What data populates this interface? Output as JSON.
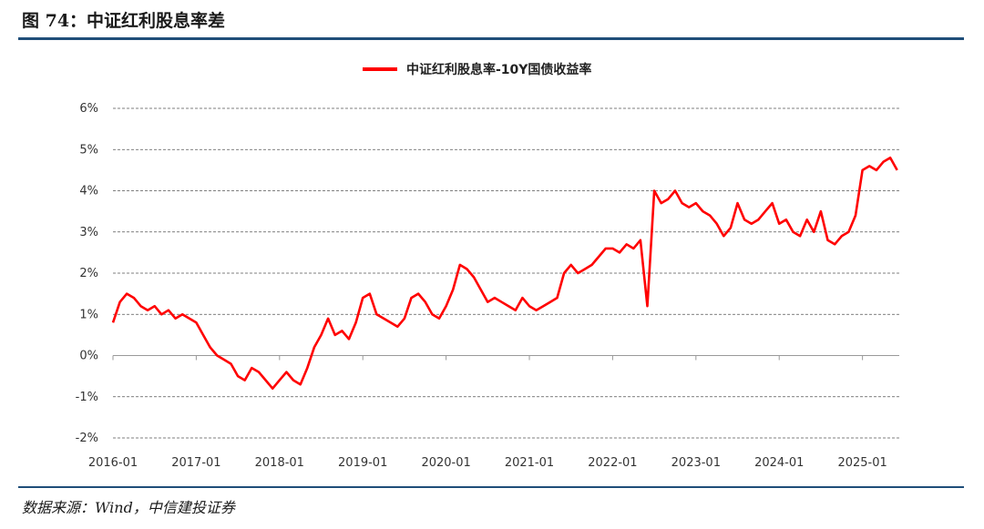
{
  "figure": {
    "title": "图 74：中证红利股息率差",
    "source": "数据来源：Wind，中信建投证券"
  },
  "chart_data": {
    "type": "line",
    "title": "",
    "xlabel": "",
    "ylabel": "",
    "ylim": [
      -2,
      6
    ],
    "y_ticks": [
      "-2%",
      "-1%",
      "0%",
      "1%",
      "2%",
      "3%",
      "4%",
      "5%",
      "6%"
    ],
    "x_ticks": [
      "2016-01",
      "2017-01",
      "2018-01",
      "2019-01",
      "2020-01",
      "2021-01",
      "2022-01",
      "2023-01",
      "2024-01",
      "2025-01"
    ],
    "grid": true,
    "legend_position": "top-center",
    "series": [
      {
        "name": "中证红利股息率-10Y国债收益率",
        "color": "#ff0000",
        "points": [
          [
            "2016-01",
            0.8
          ],
          [
            "2016-02",
            1.3
          ],
          [
            "2016-03",
            1.5
          ],
          [
            "2016-04",
            1.4
          ],
          [
            "2016-05",
            1.2
          ],
          [
            "2016-06",
            1.1
          ],
          [
            "2016-07",
            1.2
          ],
          [
            "2016-08",
            1.0
          ],
          [
            "2016-09",
            1.1
          ],
          [
            "2016-10",
            0.9
          ],
          [
            "2016-11",
            1.0
          ],
          [
            "2016-12",
            0.9
          ],
          [
            "2017-01",
            0.8
          ],
          [
            "2017-02",
            0.5
          ],
          [
            "2017-03",
            0.2
          ],
          [
            "2017-04",
            0.0
          ],
          [
            "2017-05",
            -0.1
          ],
          [
            "2017-06",
            -0.2
          ],
          [
            "2017-07",
            -0.5
          ],
          [
            "2017-08",
            -0.6
          ],
          [
            "2017-09",
            -0.3
          ],
          [
            "2017-10",
            -0.4
          ],
          [
            "2017-11",
            -0.6
          ],
          [
            "2017-12",
            -0.8
          ],
          [
            "2018-01",
            -0.6
          ],
          [
            "2018-02",
            -0.4
          ],
          [
            "2018-03",
            -0.6
          ],
          [
            "2018-04",
            -0.7
          ],
          [
            "2018-05",
            -0.3
          ],
          [
            "2018-06",
            0.2
          ],
          [
            "2018-07",
            0.5
          ],
          [
            "2018-08",
            0.9
          ],
          [
            "2018-09",
            0.5
          ],
          [
            "2018-10",
            0.6
          ],
          [
            "2018-11",
            0.4
          ],
          [
            "2018-12",
            0.8
          ],
          [
            "2019-01",
            1.4
          ],
          [
            "2019-02",
            1.5
          ],
          [
            "2019-03",
            1.0
          ],
          [
            "2019-04",
            0.9
          ],
          [
            "2019-05",
            0.8
          ],
          [
            "2019-06",
            0.7
          ],
          [
            "2019-07",
            0.9
          ],
          [
            "2019-08",
            1.4
          ],
          [
            "2019-09",
            1.5
          ],
          [
            "2019-10",
            1.3
          ],
          [
            "2019-11",
            1.0
          ],
          [
            "2019-12",
            0.9
          ],
          [
            "2020-01",
            1.2
          ],
          [
            "2020-02",
            1.6
          ],
          [
            "2020-03",
            2.2
          ],
          [
            "2020-04",
            2.1
          ],
          [
            "2020-05",
            1.9
          ],
          [
            "2020-06",
            1.6
          ],
          [
            "2020-07",
            1.3
          ],
          [
            "2020-08",
            1.4
          ],
          [
            "2020-09",
            1.3
          ],
          [
            "2020-10",
            1.2
          ],
          [
            "2020-11",
            1.1
          ],
          [
            "2020-12",
            1.4
          ],
          [
            "2021-01",
            1.2
          ],
          [
            "2021-02",
            1.1
          ],
          [
            "2021-03",
            1.2
          ],
          [
            "2021-04",
            1.3
          ],
          [
            "2021-05",
            1.4
          ],
          [
            "2021-06",
            2.0
          ],
          [
            "2021-07",
            2.2
          ],
          [
            "2021-08",
            2.0
          ],
          [
            "2021-09",
            2.1
          ],
          [
            "2021-10",
            2.2
          ],
          [
            "2021-11",
            2.4
          ],
          [
            "2021-12",
            2.6
          ],
          [
            "2022-01",
            2.6
          ],
          [
            "2022-02",
            2.5
          ],
          [
            "2022-03",
            2.7
          ],
          [
            "2022-04",
            2.6
          ],
          [
            "2022-05",
            2.8
          ],
          [
            "2022-06",
            1.2
          ],
          [
            "2022-07",
            4.0
          ],
          [
            "2022-08",
            3.7
          ],
          [
            "2022-09",
            3.8
          ],
          [
            "2022-10",
            4.0
          ],
          [
            "2022-11",
            3.7
          ],
          [
            "2022-12",
            3.6
          ],
          [
            "2023-01",
            3.7
          ],
          [
            "2023-02",
            3.5
          ],
          [
            "2023-03",
            3.4
          ],
          [
            "2023-04",
            3.2
          ],
          [
            "2023-05",
            2.9
          ],
          [
            "2023-06",
            3.1
          ],
          [
            "2023-07",
            3.7
          ],
          [
            "2023-08",
            3.3
          ],
          [
            "2023-09",
            3.2
          ],
          [
            "2023-10",
            3.3
          ],
          [
            "2023-11",
            3.5
          ],
          [
            "2023-12",
            3.7
          ],
          [
            "2024-01",
            3.2
          ],
          [
            "2024-02",
            3.3
          ],
          [
            "2024-03",
            3.0
          ],
          [
            "2024-04",
            2.9
          ],
          [
            "2024-05",
            3.3
          ],
          [
            "2024-06",
            3.0
          ],
          [
            "2024-07",
            3.5
          ],
          [
            "2024-08",
            2.8
          ],
          [
            "2024-09",
            2.7
          ],
          [
            "2024-10",
            2.9
          ],
          [
            "2024-11",
            3.0
          ],
          [
            "2024-12",
            3.4
          ],
          [
            "2025-01",
            4.5
          ],
          [
            "2025-02",
            4.6
          ],
          [
            "2025-03",
            4.5
          ],
          [
            "2025-04",
            4.7
          ],
          [
            "2025-05",
            4.8
          ],
          [
            "2025-06",
            4.5
          ]
        ]
      }
    ]
  }
}
